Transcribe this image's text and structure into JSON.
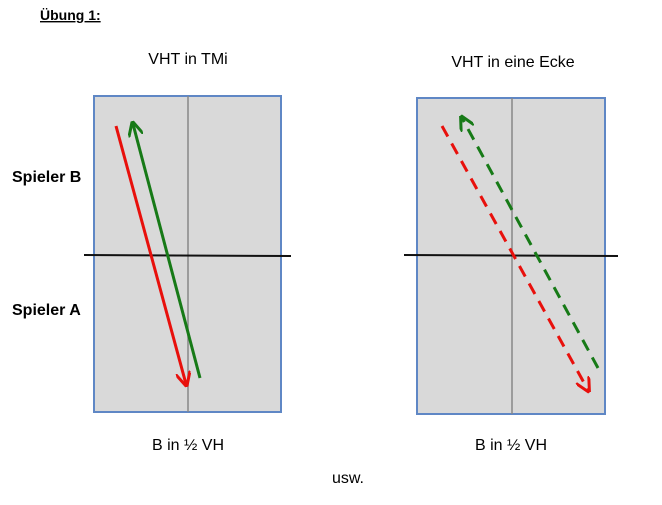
{
  "title": "Übung 1:",
  "diagrams": [
    {
      "heading": "VHT in TMi",
      "caption": "B in ½ VH"
    },
    {
      "heading": "VHT in eine Ecke",
      "caption": "B in ½ VH"
    }
  ],
  "labels": {
    "player_b": "Spieler B",
    "player_a": "Spieler A"
  },
  "footer": "usw."
}
